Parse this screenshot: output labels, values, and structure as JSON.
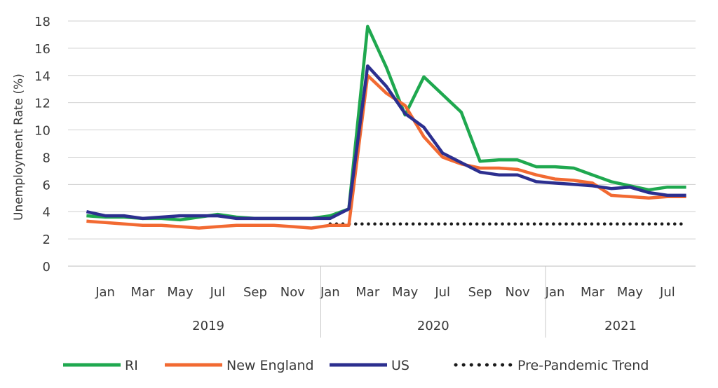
{
  "chart_data": {
    "type": "line",
    "ylabel": "Unemployment Rate (%)",
    "ylim": [
      0,
      18
    ],
    "y_ticks": [
      "0",
      "2",
      "4",
      "6",
      "8",
      "10",
      "12",
      "14",
      "16",
      "18"
    ],
    "grid": "horizontal",
    "x": [
      "2018-12",
      "2019-01",
      "2019-02",
      "2019-03",
      "2019-04",
      "2019-05",
      "2019-06",
      "2019-07",
      "2019-08",
      "2019-09",
      "2019-10",
      "2019-11",
      "2019-12",
      "2020-01",
      "2020-02",
      "2020-03",
      "2020-04",
      "2020-05",
      "2020-06",
      "2020-07",
      "2020-08",
      "2020-09",
      "2020-10",
      "2020-11",
      "2020-12",
      "2021-01",
      "2021-02",
      "2021-03",
      "2021-04",
      "2021-05",
      "2021-06",
      "2021-07",
      "2021-08"
    ],
    "month_labels": [
      {
        "label": "Jan",
        "x": "2019-01"
      },
      {
        "label": "Mar",
        "x": "2019-03"
      },
      {
        "label": "May",
        "x": "2019-05"
      },
      {
        "label": "Jul",
        "x": "2019-07"
      },
      {
        "label": "Sep",
        "x": "2019-09"
      },
      {
        "label": "Nov",
        "x": "2019-11"
      },
      {
        "label": "Jan",
        "x": "2020-01"
      },
      {
        "label": "Mar",
        "x": "2020-03"
      },
      {
        "label": "May",
        "x": "2020-05"
      },
      {
        "label": "Jul",
        "x": "2020-07"
      },
      {
        "label": "Sep",
        "x": "2020-09"
      },
      {
        "label": "Nov",
        "x": "2020-11"
      },
      {
        "label": "Jan",
        "x": "2021-01"
      },
      {
        "label": "Mar",
        "x": "2021-03"
      },
      {
        "label": "May",
        "x": "2021-05"
      },
      {
        "label": "Jul",
        "x": "2021-07"
      }
    ],
    "year_groups": [
      {
        "label": "2019",
        "from": "2018-12",
        "to": "2019-12"
      },
      {
        "label": "2020",
        "from": "2019-12",
        "to": "2020-12"
      },
      {
        "label": "2021",
        "from": "2020-12",
        "to": "2021-08"
      }
    ],
    "series": [
      {
        "name": "RI",
        "color": "#1fa84f",
        "style": "solid",
        "values": [
          3.7,
          3.6,
          3.6,
          3.5,
          3.5,
          3.4,
          3.6,
          3.8,
          3.6,
          3.5,
          3.5,
          3.5,
          3.5,
          3.7,
          4.2,
          17.6,
          14.6,
          11.1,
          13.9,
          12.6,
          11.3,
          7.7,
          7.8,
          7.8,
          7.3,
          7.3,
          7.2,
          6.7,
          6.2,
          5.9,
          5.6,
          5.8,
          5.8
        ]
      },
      {
        "name": "New England",
        "color": "#f26a32",
        "style": "solid",
        "values": [
          3.3,
          3.2,
          3.1,
          3.0,
          3.0,
          2.9,
          2.8,
          2.9,
          3.0,
          3.0,
          3.0,
          2.9,
          2.8,
          3.0,
          3.0,
          14.0,
          12.7,
          11.8,
          9.5,
          8.0,
          7.5,
          7.2,
          7.2,
          7.1,
          6.7,
          6.4,
          6.3,
          6.1,
          5.2,
          5.1,
          5.0,
          5.1,
          5.1
        ]
      },
      {
        "name": "US",
        "color": "#2c2f8f",
        "style": "solid",
        "values": [
          4.0,
          3.7,
          3.7,
          3.5,
          3.6,
          3.7,
          3.7,
          3.7,
          3.5,
          3.5,
          3.5,
          3.5,
          3.5,
          3.5,
          4.2,
          14.7,
          13.2,
          11.2,
          10.2,
          8.3,
          7.6,
          6.9,
          6.7,
          6.7,
          6.2,
          6.1,
          6.0,
          5.9,
          5.7,
          5.8,
          5.4,
          5.2,
          5.2
        ]
      },
      {
        "name": "Pre-Pandemic Trend",
        "color": "#1a1a1a",
        "style": "dotted",
        "from": "2020-01",
        "to": "2021-08",
        "value": 3.1
      }
    ],
    "legend_position": "bottom"
  }
}
